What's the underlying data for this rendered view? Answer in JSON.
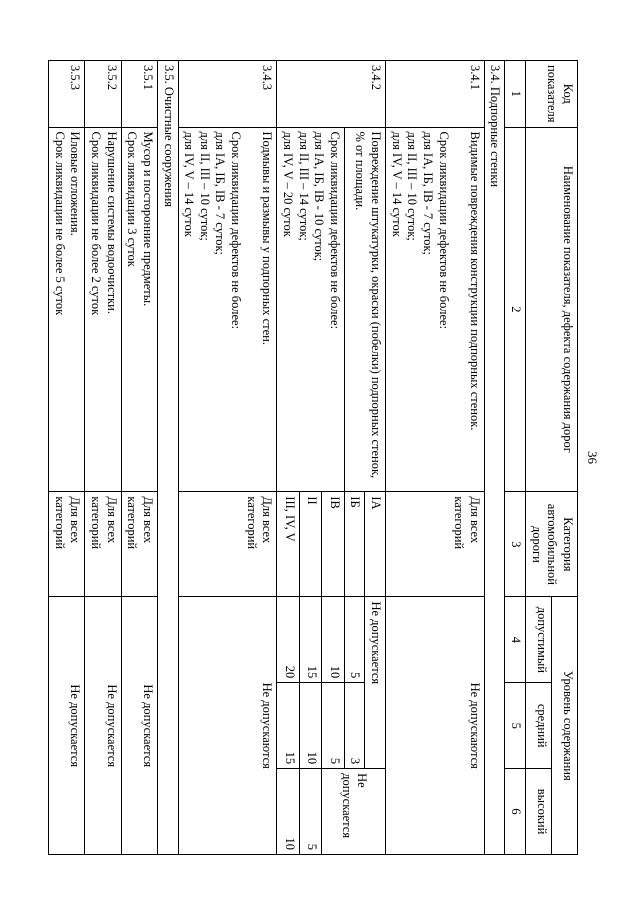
{
  "page_number": "36",
  "header": {
    "code": "Код показателя",
    "name": "Наименование показателя, дефекта содержания дорог",
    "cat": "Категория автомобильной дороги",
    "level": "Уровень содержания",
    "lvl_allow": "допустимый",
    "lvl_mid": "средний",
    "lvl_high": "высокий",
    "n1": "1",
    "n2": "2",
    "n3": "3",
    "n4": "4",
    "n5": "5",
    "n6": "6"
  },
  "sec34": "3.4. Подпорные стенки",
  "r341": {
    "code": "3.4.1",
    "name": "Видимые повреждения конструкции подпорных стенок.\n\nСрок ликвидации дефектов не более:\n  для IА, IБ, IВ - 7 суток;\n  для II, III – 10 суток;\n  для IV, V – 14 суток",
    "cat": "Для всех категорий",
    "val": "Не допускаются"
  },
  "r342": {
    "code": "3.4.2",
    "name_top": "Повреждение штукатурки, окраски (побелки) подпорных стенок, % от площади.",
    "name_bot": "Срок ликвидации дефектов не более:\n  для IА, IБ, IВ - 10 суток;\n  для II, III – 14 суток;\n  для IV, V – 20 суток",
    "rows": [
      {
        "cat": "IА",
        "a": "Не допускается",
        "m": "",
        "h": "Не допускается"
      },
      {
        "cat": "IБ",
        "a": "5",
        "m": "3",
        "h": ""
      },
      {
        "cat": "IВ",
        "a": "10",
        "m": "5",
        "h": ""
      },
      {
        "cat": "II",
        "a": "15",
        "m": "10",
        "h": "5"
      },
      {
        "cat": "III, IV, V",
        "a": "20",
        "m": "15",
        "h": "10"
      }
    ]
  },
  "r343": {
    "code": "3.4.3",
    "name": "Подмывы и размывы у подпорных стен.\n\nСрок ликвидации дефектов не более:\n  для IА, IБ, IВ - 7 суток;\n  для II, III – 10 суток;\n  для IV, V – 14 суток",
    "cat": "Для всех категорий",
    "val": "Не допускаются"
  },
  "sec35": "3.5. Очистные сооружения",
  "r351": {
    "code": "3.5.1",
    "name": "Мусор и посторонние предметы.\nСрок ликвидации 3 суток",
    "cat": "Для всех категорий",
    "val": "Не допускается"
  },
  "r352": {
    "code": "3.5.2",
    "name": "Нарушение системы водоочистки.\nСрок ликвидации не более 2 суток",
    "cat": "Для всех категорий",
    "val": "Не допускается"
  },
  "r353": {
    "code": "3.5.3",
    "name": "Иловые отложения.\nСрок ликвидации не более 5 суток",
    "cat": "Для всех категорий",
    "val": "Не допускается"
  }
}
